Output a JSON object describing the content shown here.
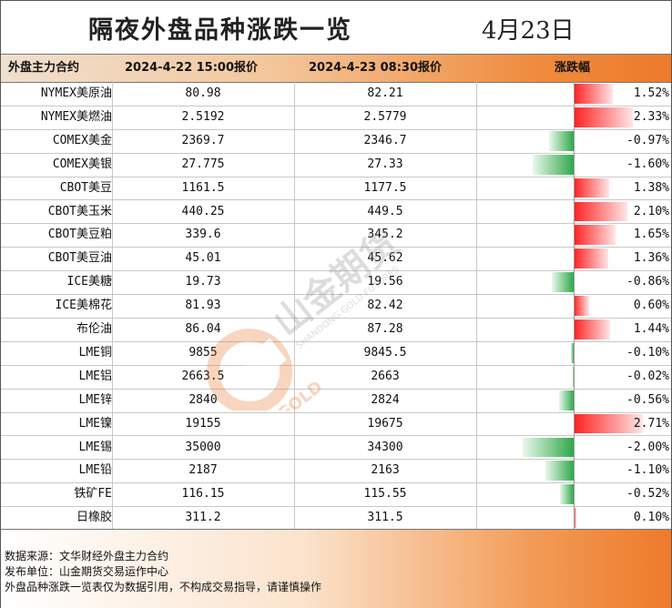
{
  "title": "隔夜外盘品种涨跌一览",
  "date": "4月23日",
  "header": {
    "name": "外盘主力合约",
    "p1": "2024-4-22 15:00报价",
    "p2": "2024-4-23 08:30报价",
    "chg": "涨跌幅"
  },
  "rows": [
    {
      "name": "NYMEX美原油",
      "p1": "80.98",
      "p2": "82.21",
      "pct": "1.52%",
      "value": 1.52
    },
    {
      "name": "NYMEX美燃油",
      "p1": "2.5192",
      "p2": "2.5779",
      "pct": "2.33%",
      "value": 2.33
    },
    {
      "name": "COMEX美金",
      "p1": "2369.7",
      "p2": "2346.7",
      "pct": "-0.97%",
      "value": -0.97
    },
    {
      "name": "COMEX美银",
      "p1": "27.775",
      "p2": "27.33",
      "pct": "-1.60%",
      "value": -1.6
    },
    {
      "name": "CBOT美豆",
      "p1": "1161.5",
      "p2": "1177.5",
      "pct": "1.38%",
      "value": 1.38
    },
    {
      "name": "CBOT美玉米",
      "p1": "440.25",
      "p2": "449.5",
      "pct": "2.10%",
      "value": 2.1
    },
    {
      "name": "CBOT美豆粕",
      "p1": "339.6",
      "p2": "345.2",
      "pct": "1.65%",
      "value": 1.65
    },
    {
      "name": "CBOT美豆油",
      "p1": "45.01",
      "p2": "45.62",
      "pct": "1.36%",
      "value": 1.36
    },
    {
      "name": "ICE美糖",
      "p1": "19.73",
      "p2": "19.56",
      "pct": "-0.86%",
      "value": -0.86
    },
    {
      "name": "ICE美棉花",
      "p1": "81.93",
      "p2": "82.42",
      "pct": "0.60%",
      "value": 0.6
    },
    {
      "name": "布伦油",
      "p1": "86.04",
      "p2": "87.28",
      "pct": "1.44%",
      "value": 1.44
    },
    {
      "name": "LME铜",
      "p1": "9855",
      "p2": "9845.5",
      "pct": "-0.10%",
      "value": -0.1
    },
    {
      "name": "LME铝",
      "p1": "2663.5",
      "p2": "2663",
      "pct": "-0.02%",
      "value": -0.02
    },
    {
      "name": "LME锌",
      "p1": "2840",
      "p2": "2824",
      "pct": "-0.56%",
      "value": -0.56
    },
    {
      "name": "LME镍",
      "p1": "19155",
      "p2": "19675",
      "pct": "2.71%",
      "value": 2.71
    },
    {
      "name": "LME锡",
      "p1": "35000",
      "p2": "34300",
      "pct": "-2.00%",
      "value": -2.0
    },
    {
      "name": "LME铅",
      "p1": "2187",
      "p2": "2163",
      "pct": "-1.10%",
      "value": -1.1
    },
    {
      "name": "铁矿FE",
      "p1": "116.15",
      "p2": "115.55",
      "pct": "-0.52%",
      "value": -0.52
    },
    {
      "name": "日橡胶",
      "p1": "311.2",
      "p2": "311.5",
      "pct": "0.10%",
      "value": 0.1
    }
  ],
  "footer": {
    "line1": "数据来源：文华财经外盘主力合约",
    "line2": "发布单位：山金期货交易运作中心",
    "line3": "外盘品种涨跌一览表仅为数据引用，不构成交易指导，请谨慎操作"
  },
  "watermark": {
    "cn": "山金期货",
    "en": "SHANDONG GOLD FUTURES",
    "logo_text": "SD-GOLD"
  },
  "colors": {
    "up": "#ff2020",
    "down": "#2fa84a",
    "accent": "#ee7a2a"
  }
}
